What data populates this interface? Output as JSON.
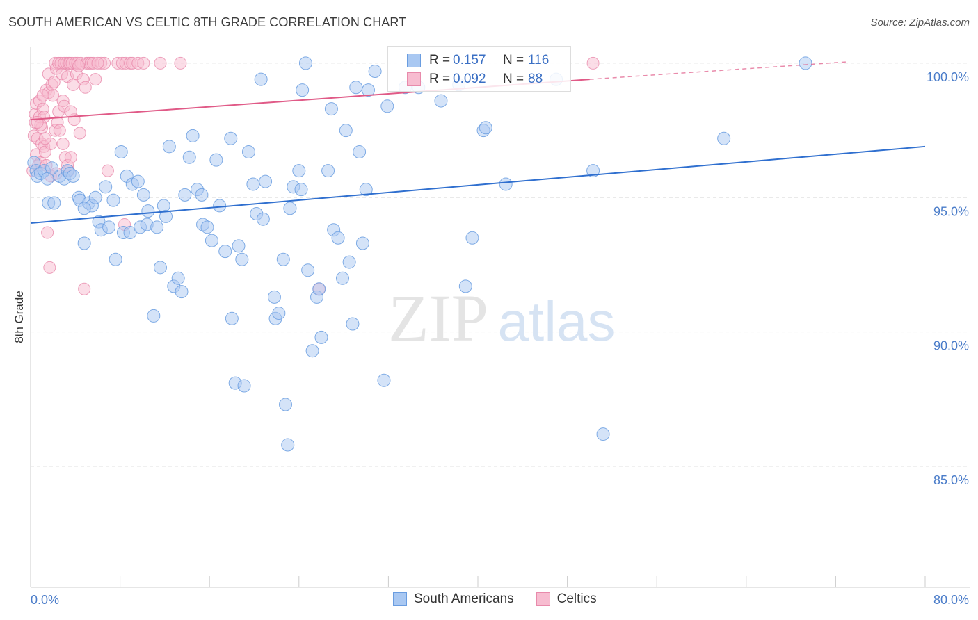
{
  "header": {
    "title": "SOUTH AMERICAN VS CELTIC 8TH GRADE CORRELATION CHART",
    "source": "Source: ZipAtlas.com"
  },
  "watermark": {
    "zip": "ZIP",
    "atlas": "atlas"
  },
  "legend": {
    "rows": [
      {
        "r_label": "R =",
        "r_value": "0.157",
        "n_label": "N =",
        "n_value": "116",
        "color": "#a9c8f2",
        "border": "#6a9de0"
      },
      {
        "r_label": "R =",
        "r_value": "0.092",
        "n_label": "N =",
        "n_value": "88",
        "color": "#f7bcd0",
        "border": "#e88aab"
      }
    ]
  },
  "bottom_legend": {
    "items": [
      "South Americans",
      "Celtics"
    ]
  },
  "chart_data": {
    "type": "scatter",
    "title": "SOUTH AMERICAN VS CELTIC 8TH GRADE CORRELATION CHART",
    "xlabel": "",
    "ylabel": "8th Grade",
    "xlim": [
      0,
      80
    ],
    "ylim": [
      80.5,
      100.8
    ],
    "x_tick_labels": [
      "0.0%",
      "80.0%"
    ],
    "y_ticks": [
      85,
      90,
      95,
      100
    ],
    "y_tick_labels": [
      "85.0%",
      "90.0%",
      "95.0%",
      "100.0%"
    ],
    "grid": true,
    "legend_position": "top-center",
    "colors": {
      "blue": "#6a9de0",
      "blue_fill": "#a9c8f2",
      "blue_line": "#2f6fcf",
      "pink": "#e88aab",
      "pink_fill": "#f7bcd0",
      "pink_line": "#e05a87"
    },
    "series": [
      {
        "name": "South Americans",
        "trend": {
          "x": [
            0,
            80
          ],
          "y": [
            94.05,
            96.9
          ]
        },
        "points": [
          [
            0.3,
            96.3
          ],
          [
            0.5,
            96.0
          ],
          [
            0.6,
            95.8
          ],
          [
            0.9,
            95.9
          ],
          [
            1.2,
            96.0
          ],
          [
            1.5,
            95.7
          ],
          [
            1.6,
            94.8
          ],
          [
            2.1,
            94.8
          ],
          [
            2.6,
            95.8
          ],
          [
            3.0,
            95.7
          ],
          [
            3.3,
            96.0
          ],
          [
            3.5,
            95.9
          ],
          [
            3.8,
            95.8
          ],
          [
            4.3,
            95.0
          ],
          [
            4.4,
            94.9
          ],
          [
            4.8,
            93.3
          ],
          [
            5.2,
            94.8
          ],
          [
            5.5,
            94.7
          ],
          [
            5.8,
            95.0
          ],
          [
            6.1,
            94.1
          ],
          [
            6.3,
            93.8
          ],
          [
            6.7,
            95.4
          ],
          [
            7.0,
            93.9
          ],
          [
            7.4,
            94.9
          ],
          [
            7.6,
            92.7
          ],
          [
            8.1,
            96.7
          ],
          [
            8.3,
            93.7
          ],
          [
            8.6,
            95.8
          ],
          [
            8.9,
            93.7
          ],
          [
            9.1,
            95.5
          ],
          [
            9.6,
            95.6
          ],
          [
            9.8,
            93.9
          ],
          [
            10.1,
            95.1
          ],
          [
            10.4,
            94.0
          ],
          [
            10.5,
            94.5
          ],
          [
            11.0,
            90.6
          ],
          [
            11.3,
            93.9
          ],
          [
            11.6,
            92.4
          ],
          [
            11.9,
            94.7
          ],
          [
            12.1,
            94.3
          ],
          [
            12.4,
            96.9
          ],
          [
            12.8,
            91.7
          ],
          [
            13.2,
            92.0
          ],
          [
            13.5,
            91.5
          ],
          [
            13.8,
            95.1
          ],
          [
            14.2,
            96.5
          ],
          [
            14.5,
            97.3
          ],
          [
            14.9,
            95.3
          ],
          [
            15.3,
            95.1
          ],
          [
            15.4,
            94.0
          ],
          [
            15.8,
            93.9
          ],
          [
            16.2,
            93.4
          ],
          [
            16.6,
            96.4
          ],
          [
            16.9,
            94.7
          ],
          [
            17.4,
            93.0
          ],
          [
            17.9,
            97.2
          ],
          [
            18.0,
            90.5
          ],
          [
            18.3,
            88.1
          ],
          [
            18.6,
            93.2
          ],
          [
            18.9,
            92.7
          ],
          [
            19.1,
            88.0
          ],
          [
            19.5,
            96.7
          ],
          [
            19.9,
            95.5
          ],
          [
            20.2,
            94.4
          ],
          [
            20.6,
            99.4
          ],
          [
            20.8,
            94.2
          ],
          [
            21.0,
            95.6
          ],
          [
            21.8,
            91.3
          ],
          [
            21.9,
            90.5
          ],
          [
            22.2,
            90.7
          ],
          [
            22.6,
            92.7
          ],
          [
            22.8,
            87.3
          ],
          [
            23.2,
            94.6
          ],
          [
            23.5,
            95.4
          ],
          [
            24.0,
            96.0
          ],
          [
            24.2,
            95.3
          ],
          [
            24.6,
            100.0
          ],
          [
            24.8,
            92.3
          ],
          [
            25.2,
            89.3
          ],
          [
            25.6,
            91.3
          ],
          [
            25.8,
            91.6
          ],
          [
            26.0,
            89.8
          ],
          [
            26.6,
            96.0
          ],
          [
            26.9,
            98.3
          ],
          [
            27.1,
            93.8
          ],
          [
            27.5,
            93.5
          ],
          [
            27.9,
            92.0
          ],
          [
            28.2,
            97.5
          ],
          [
            28.5,
            92.6
          ],
          [
            28.8,
            90.3
          ],
          [
            29.1,
            99.1
          ],
          [
            29.4,
            96.7
          ],
          [
            29.7,
            93.3
          ],
          [
            30.0,
            95.3
          ],
          [
            30.2,
            99.0
          ],
          [
            30.8,
            99.7
          ],
          [
            31.6,
            88.2
          ],
          [
            31.9,
            98.4
          ],
          [
            33.5,
            99.1
          ],
          [
            36.7,
            98.6
          ],
          [
            38.3,
            99.2
          ],
          [
            38.9,
            91.7
          ],
          [
            39.5,
            93.5
          ],
          [
            40.5,
            97.5
          ],
          [
            40.7,
            97.6
          ],
          [
            42.5,
            95.5
          ],
          [
            47.0,
            99.4
          ],
          [
            50.3,
            96.0
          ],
          [
            51.2,
            86.2
          ],
          [
            62.0,
            97.2
          ],
          [
            69.3,
            100.0
          ],
          [
            4.8,
            94.6
          ],
          [
            34.7,
            99.1
          ],
          [
            1.9,
            96.1
          ],
          [
            24.3,
            99.0
          ],
          [
            23.0,
            85.8
          ]
        ]
      },
      {
        "name": "Celtics",
        "trend": {
          "x": [
            0,
            50
          ],
          "y": [
            97.9,
            99.4
          ]
        },
        "trend_dashed": {
          "x": [
            50,
            73
          ],
          "y": [
            99.4,
            100.05
          ]
        },
        "points": [
          [
            0.2,
            96.0
          ],
          [
            0.3,
            97.3
          ],
          [
            0.4,
            97.8
          ],
          [
            0.4,
            98.1
          ],
          [
            0.5,
            98.5
          ],
          [
            0.5,
            96.6
          ],
          [
            0.6,
            97.2
          ],
          [
            0.7,
            96.2
          ],
          [
            0.8,
            98.0
          ],
          [
            0.8,
            98.6
          ],
          [
            0.9,
            96.3
          ],
          [
            1.0,
            97.6
          ],
          [
            1.0,
            97.0
          ],
          [
            1.1,
            98.3
          ],
          [
            1.2,
            96.9
          ],
          [
            1.2,
            98.0
          ],
          [
            1.3,
            96.7
          ],
          [
            1.4,
            99.0
          ],
          [
            1.4,
            96.2
          ],
          [
            1.5,
            93.7
          ],
          [
            1.6,
            98.9
          ],
          [
            1.6,
            99.6
          ],
          [
            1.7,
            92.4
          ],
          [
            1.8,
            95.8
          ],
          [
            1.8,
            97.0
          ],
          [
            1.9,
            99.2
          ],
          [
            2.0,
            98.8
          ],
          [
            2.1,
            99.3
          ],
          [
            2.2,
            97.5
          ],
          [
            2.2,
            100.0
          ],
          [
            2.3,
            99.8
          ],
          [
            2.4,
            97.8
          ],
          [
            2.5,
            100.0
          ],
          [
            2.5,
            98.2
          ],
          [
            2.6,
            97.5
          ],
          [
            2.7,
            100.0
          ],
          [
            2.8,
            99.6
          ],
          [
            2.9,
            98.6
          ],
          [
            3.0,
            98.4
          ],
          [
            3.0,
            100.0
          ],
          [
            3.1,
            96.5
          ],
          [
            3.2,
            100.0
          ],
          [
            3.3,
            99.5
          ],
          [
            3.3,
            96.2
          ],
          [
            3.4,
            100.0
          ],
          [
            3.5,
            100.0
          ],
          [
            3.6,
            96.5
          ],
          [
            3.7,
            100.0
          ],
          [
            3.8,
            99.2
          ],
          [
            3.9,
            97.9
          ],
          [
            4.0,
            100.0
          ],
          [
            4.1,
            99.6
          ],
          [
            4.2,
            100.0
          ],
          [
            4.4,
            97.4
          ],
          [
            4.5,
            100.0
          ],
          [
            4.7,
            99.4
          ],
          [
            4.8,
            91.6
          ],
          [
            4.9,
            99.1
          ],
          [
            5.0,
            100.0
          ],
          [
            5.2,
            100.0
          ],
          [
            5.4,
            100.0
          ],
          [
            5.6,
            100.0
          ],
          [
            5.8,
            99.4
          ],
          [
            6.3,
            100.0
          ],
          [
            6.6,
            100.0
          ],
          [
            6.9,
            96.0
          ],
          [
            7.8,
            100.0
          ],
          [
            8.2,
            100.0
          ],
          [
            8.4,
            94.0
          ],
          [
            8.5,
            100.0
          ],
          [
            8.9,
            100.0
          ],
          [
            9.1,
            100.0
          ],
          [
            9.6,
            100.0
          ],
          [
            10.1,
            100.0
          ],
          [
            11.6,
            100.0
          ],
          [
            13.4,
            100.0
          ],
          [
            25.8,
            91.6
          ],
          [
            50.3,
            100.0
          ],
          [
            1.3,
            97.2
          ],
          [
            2.9,
            97.0
          ],
          [
            0.9,
            97.7
          ],
          [
            3.6,
            98.2
          ],
          [
            1.1,
            98.8
          ],
          [
            0.6,
            97.8
          ],
          [
            2.3,
            95.9
          ],
          [
            4.3,
            99.9
          ],
          [
            6.0,
            100.0
          ],
          [
            3.4,
            96.0
          ]
        ]
      }
    ]
  }
}
